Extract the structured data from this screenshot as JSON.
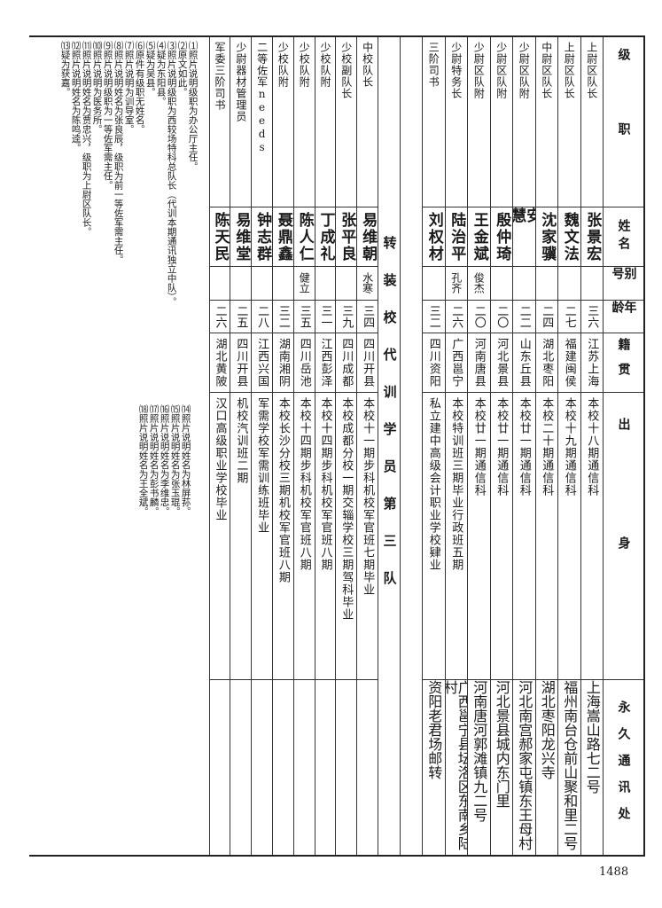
{
  "headers": {
    "rank": "级职",
    "name": "姓名",
    "alias": "别号",
    "age": "年龄",
    "native": "籍贯",
    "origin": "出身",
    "address": "永久通讯处"
  },
  "group_a": [
    {
      "rank": "上尉区队长",
      "name": "张景宏",
      "alias": "",
      "age": "三六",
      "native": "江苏上海",
      "origin": "本校十八期通信科",
      "address": "上海嵩山路七二号"
    },
    {
      "rank": "上尉区队长",
      "name": "魏文法",
      "alias": "",
      "age": "二七",
      "native": "福建闽侯",
      "origin": "本校十九期通信科",
      "address": "福州南台仓前山聚和里二号"
    },
    {
      "rank": "中尉区队长",
      "name": "沈家骥",
      "alias": "",
      "age": "二四",
      "native": "湖北枣阳",
      "origin": "本校二十期通信科",
      "address": "湖北枣阳龙兴寺"
    },
    {
      "rank": "少尉区队附",
      "name": "安慧",
      "alias": "",
      "age": "二二",
      "native": "山东丘县",
      "origin": "本校廿一期通信科",
      "address": "河北南宫郝家屯镇东王母村"
    },
    {
      "rank": "少尉区队附",
      "name": "殷仲琦",
      "alias": "",
      "age": "二〇",
      "native": "河北景县",
      "origin": "本校廿一期通信科",
      "address": "河北景县城内东门里"
    },
    {
      "rank": "少尉区队附",
      "name": "王金斌",
      "alias": "俊杰",
      "age": "二〇",
      "native": "河南唐县",
      "origin": "本校廿一期通信科",
      "address": "河南唐河郭滩镇九二号"
    },
    {
      "rank": "少尉特务长",
      "name": "陆治平",
      "alias": "孔齐",
      "age": "二六",
      "native": "广西邕宁",
      "origin": "本校特训班三期毕业行政班五期",
      "address": "广西邕宁县坛洛区东南乡陆村"
    },
    {
      "rank": "三阶司书",
      "name": "刘权材",
      "alias": "",
      "age": "三二",
      "native": "四川资阳",
      "origin": "私立建中高级会计职业学校肄业",
      "address": "资阳老君场邮转"
    }
  ],
  "section_title": "转装校代训学员第三队",
  "group_b": [
    {
      "rank": "中校队长",
      "name": "易维朝",
      "alias": "水寒",
      "age": "三四",
      "native": "四川开县",
      "origin": "本校十一期步科机校军官班七期毕业",
      "address": ""
    },
    {
      "rank": "少校副队长",
      "name": "张平良",
      "alias": "",
      "age": "三九",
      "native": "四川成都",
      "origin": "本校成都分校一期交辎学校三期驾科毕业",
      "address": ""
    },
    {
      "rank": "少校队附",
      "name": "丁成礼",
      "alias": "",
      "age": "三一",
      "native": "江西彭泽",
      "origin": "本校十四期步科机校军官班八期",
      "address": ""
    },
    {
      "rank": "少校队附",
      "name": "陈人仁",
      "alias": "健立",
      "age": "三五",
      "native": "四川岳池",
      "origin": "本校十四期步科机校军官班八期",
      "address": ""
    },
    {
      "rank": "少校队附",
      "name": "聂鼎鑫",
      "alias": "",
      "age": "三二",
      "native": "湖南湘阴",
      "origin": "本校长沙分校三期机校军官班八期",
      "address": ""
    },
    {
      "rank": "二等佐军needs",
      "name": "钟志群",
      "alias": "",
      "age": "二八",
      "native": "江西兴国",
      "origin": "军需学校军需训练班毕业",
      "address": ""
    },
    {
      "rank": "少尉器材管理员",
      "name": "易维堂",
      "alias": "",
      "age": "二五",
      "native": "四川开县",
      "origin": "机校汽训班二期",
      "address": ""
    },
    {
      "rank": "军委三阶司书",
      "name": "陈天民",
      "alias": "",
      "age": "二六",
      "native": "湖北黄陂",
      "origin": "汉口高级职业学校毕业",
      "address": ""
    }
  ],
  "notes_top": [
    "⑴照片说明级职为办公厅主任。",
    "⑵原文如此。",
    "⑶照片说明级职为西较场特科总队长（代训本期通讯独立中队）。",
    "⑷疑为东阳县。",
    "⑸疑为吴县。",
    "⑹原件有级职无姓名。",
    "⑺照片说明为训导室。",
    "⑻照片说明姓名为张良辰，级职为前一等佐军需主任。",
    "⑼照片说明级职为一等佐军需主任。",
    "⑽照片说明为医务所。",
    "⑾照片说明姓名为贾忠兴，级职为上尉区队长。",
    "⑿照片说明姓名为陈鸣逵。",
    "⒀疑为获嘉。"
  ],
  "notes_bottom": [
    "⒁照片说明姓名为林屏荪。",
    "⒂照片说明姓名为张玉琨。",
    "⒃照片说明姓名为李维忠。",
    "⒄照片说明姓名为彭书麟。",
    "⒅照片说明姓名为王全斌。"
  ],
  "page_number": "1488"
}
